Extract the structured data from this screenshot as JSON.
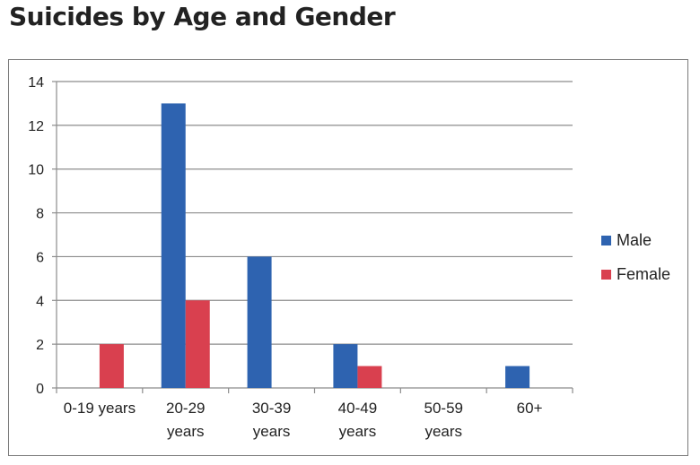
{
  "page": {
    "title": "Suicides by Age and Gender"
  },
  "chart_data": {
    "type": "bar",
    "title": "Suicides by Age and Gender",
    "xlabel": "",
    "ylabel": "",
    "categories": [
      [
        "0-19 years"
      ],
      [
        "20-29",
        "years"
      ],
      [
        "30-39",
        "years"
      ],
      [
        "40-49",
        "years"
      ],
      [
        "50-59",
        "years"
      ],
      [
        "60+"
      ]
    ],
    "series": [
      {
        "name": "Male",
        "color": "#2e63b0",
        "values": [
          0,
          13,
          6,
          2,
          0,
          1
        ]
      },
      {
        "name": "Female",
        "color": "#d9404f",
        "values": [
          2,
          4,
          0,
          1,
          0,
          0
        ]
      }
    ],
    "ylim": [
      0,
      14
    ],
    "yticks": [
      0,
      2,
      4,
      6,
      8,
      10,
      12,
      14
    ],
    "grid": true,
    "legend_position": "right"
  }
}
